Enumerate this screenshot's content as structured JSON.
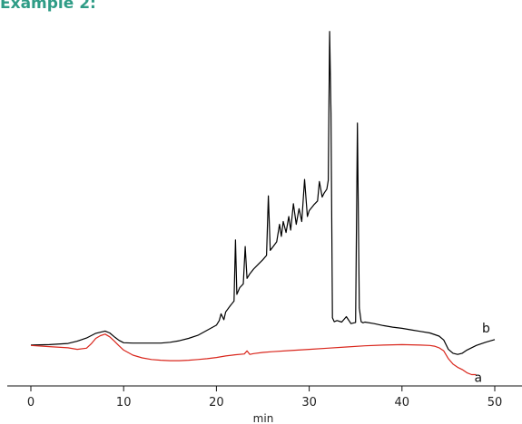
{
  "heading": "Example 2:",
  "chart_data": {
    "type": "line",
    "title": "",
    "xlabel": "min",
    "ylabel": "",
    "xlim": [
      0,
      50
    ],
    "xticks": [
      0,
      10,
      20,
      30,
      40,
      50
    ],
    "grid": false,
    "series": [
      {
        "name": "b",
        "color": "#000000",
        "x": [
          0,
          2,
          4,
          5,
          6,
          7,
          7.5,
          8,
          8.5,
          9,
          9.5,
          10,
          11,
          12,
          13,
          14,
          15,
          16,
          17,
          18,
          19,
          20,
          20.3,
          20.5,
          20.8,
          21,
          21.5,
          21.9,
          22.05,
          22.2,
          22.5,
          22.9,
          23.1,
          23.3,
          23.6,
          24,
          24.5,
          25,
          25.4,
          25.6,
          25.8,
          26,
          26.5,
          26.8,
          27,
          27.2,
          27.5,
          27.8,
          28,
          28.3,
          28.6,
          28.9,
          29.2,
          29.5,
          29.8,
          30,
          30.5,
          30.9,
          31.1,
          31.4,
          31.6,
          31.9,
          32.05,
          32.2,
          32.35,
          32.5,
          32.7,
          33,
          33.5,
          34,
          34.5,
          35,
          35.2,
          35.4,
          35.6,
          35.8,
          36,
          37,
          38,
          39,
          40,
          41,
          42,
          43,
          44,
          44.5,
          45,
          45.5,
          46,
          46.5,
          47,
          48,
          49,
          50
        ],
        "y": [
          0.5,
          0.6,
          0.9,
          1.5,
          2.3,
          3.5,
          3.8,
          4.1,
          3.6,
          2.6,
          1.7,
          1.1,
          1.0,
          1.0,
          1.0,
          1.0,
          1.2,
          1.6,
          2.2,
          3.0,
          4.3,
          5.6,
          6.8,
          8.5,
          7.0,
          9.0,
          10.6,
          11.8,
          27.5,
          13.5,
          15.2,
          16.2,
          25.8,
          17.6,
          18.8,
          20.0,
          21.2,
          22.4,
          23.5,
          38.8,
          24.8,
          25.4,
          27.0,
          31.5,
          28.4,
          32.2,
          29.4,
          33.5,
          30.0,
          36.8,
          31.5,
          35.5,
          32.2,
          43.0,
          33.5,
          35.0,
          36.5,
          37.5,
          42.5,
          38.5,
          39.5,
          40.5,
          42.8,
          81.0,
          60.0,
          7.5,
          6.5,
          6.8,
          6.4,
          7.8,
          6.0,
          6.3,
          57.5,
          10.0,
          6.5,
          6.2,
          6.4,
          6.0,
          5.5,
          5.1,
          4.8,
          4.4,
          4.0,
          3.6,
          2.8,
          1.8,
          -0.6,
          -1.6,
          -1.9,
          -1.6,
          -0.8,
          0.4,
          1.2,
          1.9
        ]
      },
      {
        "name": "a",
        "color": "#d9261c",
        "x": [
          0,
          2,
          4,
          5,
          6,
          6.5,
          7,
          7.5,
          8,
          8.5,
          9,
          9.5,
          10,
          11,
          12,
          13,
          14,
          15,
          16,
          17,
          18,
          19,
          20,
          21,
          22,
          23,
          23.3,
          23.6,
          24,
          25,
          26,
          28,
          30,
          32,
          34,
          36,
          38,
          40,
          42,
          43,
          43.5,
          44,
          44.5,
          45,
          45.5,
          46,
          46.5,
          47,
          47.5,
          48
        ],
        "y": [
          0.4,
          0.1,
          -0.2,
          -0.6,
          -0.3,
          0.8,
          2.2,
          2.9,
          3.3,
          2.6,
          1.5,
          0.3,
          -0.8,
          -2.1,
          -2.8,
          -3.2,
          -3.4,
          -3.5,
          -3.5,
          -3.4,
          -3.2,
          -3.0,
          -2.7,
          -2.3,
          -2.0,
          -1.8,
          -1.0,
          -1.9,
          -1.7,
          -1.4,
          -1.2,
          -0.9,
          -0.6,
          -0.3,
          0.0,
          0.3,
          0.5,
          0.6,
          0.5,
          0.4,
          0.2,
          -0.2,
          -1.0,
          -3.0,
          -4.4,
          -5.2,
          -5.8,
          -6.6,
          -7.1,
          -7.1
        ]
      }
    ]
  }
}
